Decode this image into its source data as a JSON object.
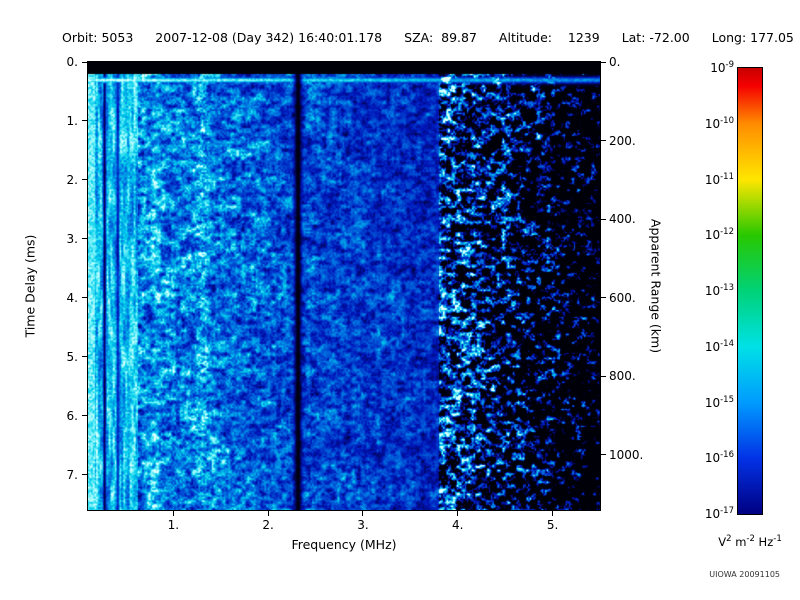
{
  "header": {
    "items": [
      "Orbit: 5053",
      "2007-12-08 (Day 342) 16:40:01.178",
      "SZA:  89.87",
      "Altitude:    1239",
      "Lat: -72.00",
      "Long: 177.05"
    ]
  },
  "axes": {
    "left": {
      "title": "Time Delay (ms)",
      "tick_labels": [
        "0.",
        "1.",
        "2.",
        "3.",
        "4.",
        "5.",
        "6.",
        "7."
      ],
      "tick_values": [
        0,
        1,
        2,
        3,
        4,
        5,
        6,
        7
      ]
    },
    "right": {
      "title": "Apparent Range (km)",
      "tick_labels": [
        "0.",
        "200.",
        "400.",
        "600.",
        "800.",
        "1000."
      ],
      "tick_values": [
        0,
        200,
        400,
        600,
        800,
        1000
      ]
    },
    "bottom": {
      "title": "Frequency (MHz)",
      "tick_labels": [
        "1.",
        "2.",
        "3.",
        "4.",
        "5."
      ],
      "tick_values": [
        1,
        2,
        3,
        4,
        5
      ]
    }
  },
  "colorbar": {
    "tick_base": "10",
    "tick_exponents": [
      "-9",
      "-10",
      "-11",
      "-12",
      "-13",
      "-14",
      "-15",
      "-16",
      "-17"
    ],
    "units_parts": [
      {
        "text": "V"
      },
      {
        "sup": "2"
      },
      {
        "text": " m"
      },
      {
        "sup": "-2"
      },
      {
        "text": " Hz"
      },
      {
        "sup": "-1"
      }
    ]
  },
  "watermark": "UIOWA 20091105",
  "chart_data": {
    "type": "heatmap",
    "title": "",
    "xlabel": "Frequency (MHz)",
    "ylabel": "Time Delay (ms)",
    "y2label": "Apparent Range (km)",
    "xlim": [
      0.1,
      5.5
    ],
    "ylim": [
      0,
      7.6
    ],
    "y2lim": [
      0,
      1140
    ],
    "x_ticks": [
      1,
      2,
      3,
      4,
      5
    ],
    "y_ticks": [
      0,
      1,
      2,
      3,
      4,
      5,
      6,
      7
    ],
    "y2_ticks": [
      0,
      200,
      400,
      600,
      800,
      1000
    ],
    "y_axis_inverted": true,
    "grid": false,
    "legend": "none",
    "color_scale": {
      "min_exp": -17,
      "max_exp": -9,
      "scale": "log",
      "units": "V^2 m^-2 Hz^-1",
      "colormap": "jet",
      "gradient": [
        {
          "pos": 0,
          "color": "#c80000"
        },
        {
          "pos": 4,
          "color": "#f50000"
        },
        {
          "pos": 12.5,
          "color": "#ff8c00"
        },
        {
          "pos": 25,
          "color": "#ffe600"
        },
        {
          "pos": 37.5,
          "color": "#28c800"
        },
        {
          "pos": 50,
          "color": "#00d278"
        },
        {
          "pos": 62.5,
          "color": "#00e1e6"
        },
        {
          "pos": 75,
          "color": "#009bff"
        },
        {
          "pos": 87.5,
          "color": "#0232e6"
        },
        {
          "pos": 100,
          "color": "#000082"
        }
      ]
    },
    "features": {
      "top_black_ms": 0.2,
      "leading_edge_ms": 0.3,
      "bright_low_freq_max_mhz": 0.62,
      "dark_lines_mhz": [
        0.27,
        0.41
      ],
      "bright_stripe_mhz": 1.3,
      "black_band_mhz": 2.31,
      "sparse_start_mhz": 3.8,
      "background": "dense blue/cyan noise speckle fading to sparse blue blobs on black at high frequency"
    }
  }
}
